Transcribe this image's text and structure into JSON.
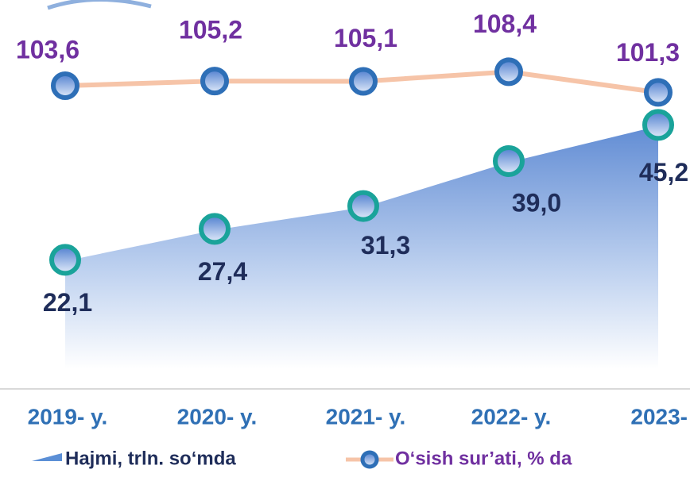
{
  "chart_data": {
    "type": "area_line",
    "categories": [
      "2019- y.",
      "2020- y.",
      "2021- y.",
      "2022- y.",
      "2023-"
    ],
    "series": [
      {
        "name": "Hajmi, trln. so‘mda",
        "color": "#5b8fd6",
        "values": [
          22.1,
          27.4,
          31.3,
          39.0,
          45.2
        ],
        "value_labels": [
          "22,1",
          "27,4",
          "31,3",
          "39,0",
          "45,2"
        ]
      },
      {
        "name": "O‘sish sur’ati, % da",
        "color": "#f6c4a8",
        "values": [
          103.6,
          105.2,
          105.1,
          108.4,
          101.3
        ],
        "value_labels": [
          "103,6",
          "105,2",
          "105,1",
          "108,4",
          "101,3"
        ]
      }
    ]
  }
}
